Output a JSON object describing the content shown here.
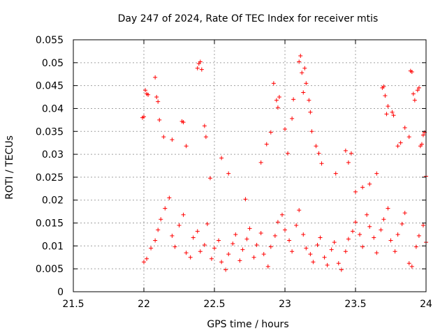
{
  "chart_data": {
    "type": "scatter",
    "title": "Day 247 of 2024, Rate Of TEC Index for receiver mtis",
    "xlabel": "GPS time / hours",
    "ylabel": "ROTI / TECUs",
    "xlim": [
      21.5,
      24
    ],
    "ylim": [
      0,
      0.055
    ],
    "xticks": [
      "21.5",
      "22",
      "22.5",
      "23",
      "23.5",
      "24"
    ],
    "yticks": [
      "0",
      "0.005",
      "0.01",
      "0.015",
      "0.02",
      "0.025",
      "0.03",
      "0.035",
      "0.04",
      "0.045",
      "0.05",
      "0.055"
    ],
    "marker": "+",
    "color": "#ff0000",
    "grid": true,
    "series": [
      {
        "name": "ROTI",
        "points": [
          [
            21.99,
            0.038
          ],
          [
            22.0,
            0.0382
          ],
          [
            22.01,
            0.044
          ],
          [
            22.02,
            0.0432
          ],
          [
            22.03,
            0.043
          ],
          [
            22.08,
            0.0468
          ],
          [
            22.09,
            0.0425
          ],
          [
            22.1,
            0.0415
          ],
          [
            22.11,
            0.0375
          ],
          [
            22.14,
            0.0338
          ],
          [
            22.2,
            0.0332
          ],
          [
            22.27,
            0.0372
          ],
          [
            22.28,
            0.037
          ],
          [
            22.3,
            0.0318
          ],
          [
            22.38,
            0.0488
          ],
          [
            22.39,
            0.0498
          ],
          [
            22.4,
            0.0502
          ],
          [
            22.41,
            0.0485
          ],
          [
            22.43,
            0.0362
          ],
          [
            22.44,
            0.0338
          ],
          [
            22.47,
            0.0248
          ],
          [
            22.55,
            0.0292
          ],
          [
            22.6,
            0.0258
          ],
          [
            22.72,
            0.0202
          ],
          [
            22.83,
            0.0282
          ],
          [
            22.87,
            0.0322
          ],
          [
            22.9,
            0.0348
          ],
          [
            22.92,
            0.0455
          ],
          [
            22.94,
            0.0418
          ],
          [
            22.95,
            0.0402
          ],
          [
            22.96,
            0.0425
          ],
          [
            23.0,
            0.0355
          ],
          [
            23.02,
            0.0302
          ],
          [
            23.05,
            0.0378
          ],
          [
            23.06,
            0.042
          ],
          [
            23.1,
            0.0502
          ],
          [
            23.11,
            0.0515
          ],
          [
            23.12,
            0.0478
          ],
          [
            23.13,
            0.0435
          ],
          [
            23.14,
            0.0488
          ],
          [
            23.15,
            0.0455
          ],
          [
            23.17,
            0.0418
          ],
          [
            23.18,
            0.0392
          ],
          [
            23.19,
            0.035
          ],
          [
            23.22,
            0.0318
          ],
          [
            23.24,
            0.0302
          ],
          [
            23.26,
            0.028
          ],
          [
            23.36,
            0.0258
          ],
          [
            23.43,
            0.0308
          ],
          [
            23.45,
            0.0282
          ],
          [
            23.47,
            0.0302
          ],
          [
            23.5,
            0.0218
          ],
          [
            23.55,
            0.0228
          ],
          [
            23.6,
            0.0235
          ],
          [
            23.65,
            0.0258
          ],
          [
            23.69,
            0.0445
          ],
          [
            23.7,
            0.0448
          ],
          [
            23.71,
            0.0428
          ],
          [
            23.72,
            0.0388
          ],
          [
            23.73,
            0.0405
          ],
          [
            23.76,
            0.0392
          ],
          [
            23.77,
            0.0385
          ],
          [
            23.8,
            0.0318
          ],
          [
            23.82,
            0.0325
          ],
          [
            23.85,
            0.0358
          ],
          [
            23.88,
            0.0338
          ],
          [
            23.89,
            0.0482
          ],
          [
            23.9,
            0.048
          ],
          [
            23.91,
            0.0432
          ],
          [
            23.92,
            0.0418
          ],
          [
            23.94,
            0.044
          ],
          [
            23.95,
            0.0445
          ],
          [
            23.96,
            0.0318
          ],
          [
            23.97,
            0.0322
          ],
          [
            23.98,
            0.0342
          ],
          [
            23.99,
            0.0348
          ],
          [
            24.0,
            0.0252
          ],
          [
            22.0,
            0.0065
          ],
          [
            22.02,
            0.0072
          ],
          [
            22.05,
            0.0095
          ],
          [
            22.08,
            0.0112
          ],
          [
            22.1,
            0.0135
          ],
          [
            22.12,
            0.0158
          ],
          [
            22.15,
            0.0182
          ],
          [
            22.18,
            0.0205
          ],
          [
            22.2,
            0.0122
          ],
          [
            22.22,
            0.0098
          ],
          [
            22.25,
            0.0145
          ],
          [
            22.28,
            0.0168
          ],
          [
            22.3,
            0.0085
          ],
          [
            22.33,
            0.0075
          ],
          [
            22.35,
            0.0118
          ],
          [
            22.38,
            0.0132
          ],
          [
            22.4,
            0.0088
          ],
          [
            22.43,
            0.0102
          ],
          [
            22.45,
            0.0148
          ],
          [
            22.48,
            0.0072
          ],
          [
            22.5,
            0.0095
          ],
          [
            22.53,
            0.0112
          ],
          [
            22.55,
            0.0065
          ],
          [
            22.58,
            0.0048
          ],
          [
            22.6,
            0.0082
          ],
          [
            22.63,
            0.0105
          ],
          [
            22.65,
            0.0125
          ],
          [
            22.68,
            0.0068
          ],
          [
            22.7,
            0.0092
          ],
          [
            22.73,
            0.0115
          ],
          [
            22.75,
            0.0138
          ],
          [
            22.78,
            0.0075
          ],
          [
            22.8,
            0.0102
          ],
          [
            22.83,
            0.0128
          ],
          [
            22.85,
            0.0082
          ],
          [
            22.88,
            0.0055
          ],
          [
            22.9,
            0.0098
          ],
          [
            22.93,
            0.0122
          ],
          [
            22.95,
            0.0152
          ],
          [
            22.98,
            0.0168
          ],
          [
            23.0,
            0.0135
          ],
          [
            23.03,
            0.0112
          ],
          [
            23.05,
            0.0088
          ],
          [
            23.08,
            0.0145
          ],
          [
            23.1,
            0.0178
          ],
          [
            23.13,
            0.0125
          ],
          [
            23.15,
            0.0095
          ],
          [
            23.18,
            0.0082
          ],
          [
            23.2,
            0.0065
          ],
          [
            23.23,
            0.0102
          ],
          [
            23.25,
            0.0118
          ],
          [
            23.28,
            0.0075
          ],
          [
            23.3,
            0.0058
          ],
          [
            23.33,
            0.0092
          ],
          [
            23.35,
            0.0108
          ],
          [
            23.38,
            0.0062
          ],
          [
            23.4,
            0.0048
          ],
          [
            23.43,
            0.0088
          ],
          [
            23.45,
            0.0115
          ],
          [
            23.48,
            0.0132
          ],
          [
            23.5,
            0.0152
          ],
          [
            23.53,
            0.0125
          ],
          [
            23.55,
            0.0098
          ],
          [
            23.58,
            0.0168
          ],
          [
            23.6,
            0.0142
          ],
          [
            23.63,
            0.0118
          ],
          [
            23.65,
            0.0085
          ],
          [
            23.68,
            0.0135
          ],
          [
            23.7,
            0.0158
          ],
          [
            23.73,
            0.0182
          ],
          [
            23.75,
            0.0112
          ],
          [
            23.78,
            0.0088
          ],
          [
            23.8,
            0.0125
          ],
          [
            23.83,
            0.0148
          ],
          [
            23.85,
            0.0172
          ],
          [
            23.88,
            0.0062
          ],
          [
            23.9,
            0.0055
          ],
          [
            23.93,
            0.0098
          ],
          [
            23.95,
            0.0122
          ],
          [
            23.98,
            0.0145
          ],
          [
            24.0,
            0.0108
          ]
        ]
      }
    ]
  }
}
